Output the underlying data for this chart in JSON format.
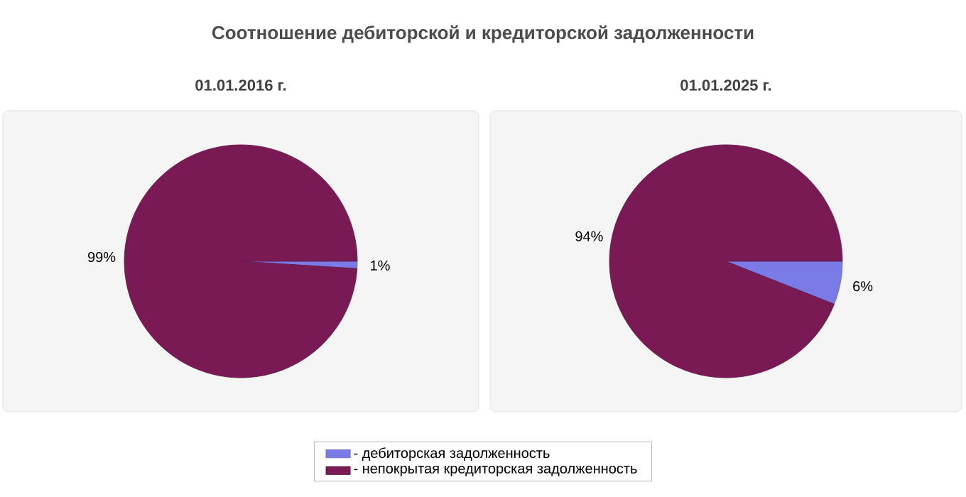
{
  "chart_data": [
    {
      "type": "pie",
      "title": "Соотношение дебиторской и кредиторской задолженности",
      "subtitle": "01.01.2016 г.",
      "categories": [
        "- дебиторская задолженность",
        "- непокрытая кредиторская задолженность"
      ],
      "values": [
        1,
        99
      ],
      "value_labels": [
        "1%",
        "99%"
      ],
      "colors": [
        "#7b7be8",
        "#7a1a55"
      ],
      "legend": "bottom"
    },
    {
      "type": "pie",
      "subtitle": "01.01.2025 г.",
      "categories": [
        null,
        null
      ],
      "values": [
        6,
        94
      ],
      "value_labels": [
        "6%",
        "94%"
      ],
      "colors": [
        "#7b7be8",
        "#7a1a55"
      ]
    }
  ]
}
